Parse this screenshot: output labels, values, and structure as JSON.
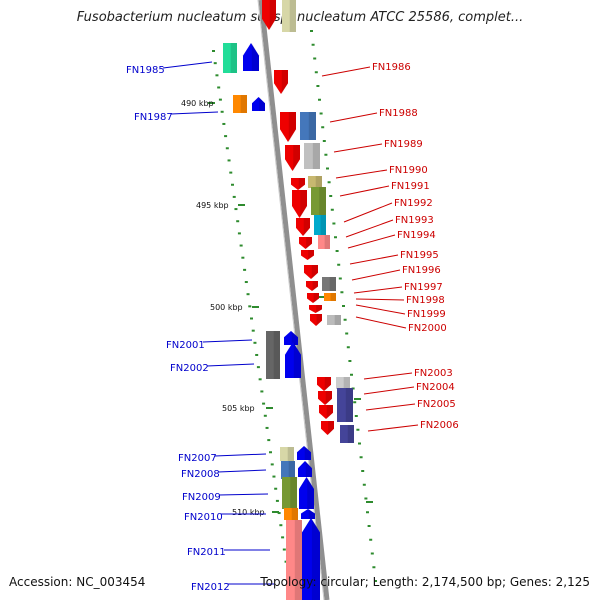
{
  "title": "Fusobacterium nucleatum subsp. nucleatum ATCC 25586, complet...",
  "footer": {
    "accession": "Accession: NC_003454",
    "topology": "Topology: circular; Length: 2,174,500 bp; Genes: 2,125"
  },
  "colors": {
    "plus_strand": "#0000ee",
    "minus_strand": "#ee0000",
    "left_label": "#0000cc",
    "right_label": "#cc0000",
    "backbone": "#8f8f8f",
    "tick_dots": "#2e8b2e",
    "kbp_label": "#111111"
  },
  "kbp_labels": [
    "490 kbp",
    "495 kbp",
    "500 kbp",
    "505 kbp",
    "510 kbp"
  ],
  "genes_left": [
    {
      "label": "FN1985"
    },
    {
      "label": "FN1987"
    },
    {
      "label": "FN2001"
    },
    {
      "label": "FN2002"
    },
    {
      "label": "FN2007"
    },
    {
      "label": "FN2008"
    },
    {
      "label": "FN2009"
    },
    {
      "label": "FN2010"
    },
    {
      "label": "FN2011"
    },
    {
      "label": "FN2012"
    }
  ],
  "genes_right": [
    {
      "label": "FN1986"
    },
    {
      "label": "FN1988"
    },
    {
      "label": "FN1989"
    },
    {
      "label": "FN1990"
    },
    {
      "label": "FN1991"
    },
    {
      "label": "FN1992"
    },
    {
      "label": "FN1993"
    },
    {
      "label": "FN1994"
    },
    {
      "label": "FN1995"
    },
    {
      "label": "FN1996"
    },
    {
      "label": "FN1997"
    },
    {
      "label": "FN1998"
    },
    {
      "label": "FN1999"
    },
    {
      "label": "FN2000"
    },
    {
      "label": "FN2003"
    },
    {
      "label": "FN2004"
    },
    {
      "label": "FN2005"
    },
    {
      "label": "FN2006"
    }
  ]
}
